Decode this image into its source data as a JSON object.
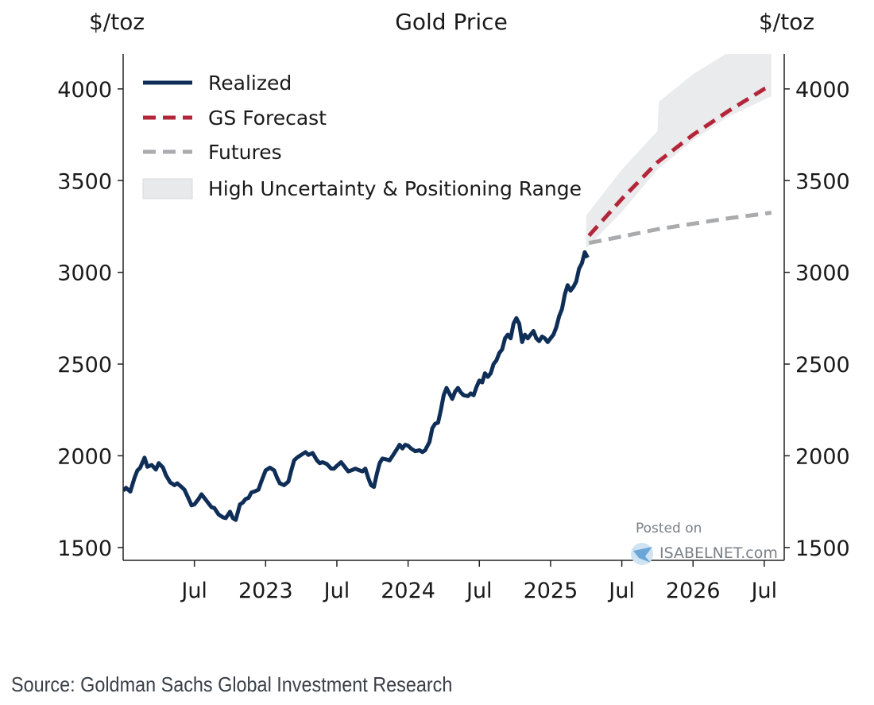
{
  "chart_data": {
    "type": "line",
    "title": "Gold Price",
    "ylabel_left": "$/toz",
    "ylabel_right": "$/toz",
    "ylim": [
      1430,
      4190
    ],
    "yticks": [
      1500,
      2000,
      2500,
      3000,
      3500,
      4000
    ],
    "xlim": [
      2022.0,
      2026.64
    ],
    "xticks": [
      {
        "value": 2022.5,
        "label": "Jul"
      },
      {
        "value": 2023.0,
        "label": "2023"
      },
      {
        "value": 2023.5,
        "label": "Jul"
      },
      {
        "value": 2024.0,
        "label": "2024"
      },
      {
        "value": 2024.5,
        "label": "Jul"
      },
      {
        "value": 2025.0,
        "label": "2025"
      },
      {
        "value": 2025.5,
        "label": "Jul"
      },
      {
        "value": 2026.0,
        "label": "2026"
      },
      {
        "value": 2026.5,
        "label": "Jul"
      }
    ],
    "legend": [
      {
        "label": "Realized",
        "style": "solid",
        "color": "#0f2e57"
      },
      {
        "label": "GS Forecast",
        "style": "dashed",
        "color": "#b3263a"
      },
      {
        "label": "Futures",
        "style": "dashed",
        "color": "#a9abae"
      },
      {
        "label": "High Uncertainty & Positioning Range",
        "style": "band",
        "color": "#e8e9eb"
      }
    ],
    "legend_position": "top-left",
    "series": [
      {
        "name": "Realized",
        "color": "#0f2e57",
        "points": [
          [
            2022.0,
            1810
          ],
          [
            2022.02,
            1825
          ],
          [
            2022.05,
            1805
          ],
          [
            2022.08,
            1880
          ],
          [
            2022.1,
            1920
          ],
          [
            2022.12,
            1935
          ],
          [
            2022.15,
            1990
          ],
          [
            2022.17,
            1940
          ],
          [
            2022.2,
            1950
          ],
          [
            2022.23,
            1925
          ],
          [
            2022.25,
            1960
          ],
          [
            2022.28,
            1935
          ],
          [
            2022.3,
            1895
          ],
          [
            2022.33,
            1855
          ],
          [
            2022.36,
            1840
          ],
          [
            2022.38,
            1850
          ],
          [
            2022.41,
            1830
          ],
          [
            2022.43,
            1815
          ],
          [
            2022.46,
            1765
          ],
          [
            2022.48,
            1730
          ],
          [
            2022.5,
            1735
          ],
          [
            2022.53,
            1765
          ],
          [
            2022.55,
            1790
          ],
          [
            2022.57,
            1770
          ],
          [
            2022.6,
            1740
          ],
          [
            2022.62,
            1720
          ],
          [
            2022.64,
            1715
          ],
          [
            2022.67,
            1680
          ],
          [
            2022.7,
            1665
          ],
          [
            2022.72,
            1660
          ],
          [
            2022.75,
            1695
          ],
          [
            2022.77,
            1660
          ],
          [
            2022.79,
            1650
          ],
          [
            2022.82,
            1735
          ],
          [
            2022.84,
            1745
          ],
          [
            2022.86,
            1765
          ],
          [
            2022.88,
            1770
          ],
          [
            2022.9,
            1800
          ],
          [
            2022.92,
            1805
          ],
          [
            2022.95,
            1815
          ],
          [
            2022.97,
            1860
          ],
          [
            2023.0,
            1920
          ],
          [
            2023.03,
            1935
          ],
          [
            2023.06,
            1920
          ],
          [
            2023.08,
            1880
          ],
          [
            2023.1,
            1850
          ],
          [
            2023.13,
            1840
          ],
          [
            2023.16,
            1860
          ],
          [
            2023.18,
            1920
          ],
          [
            2023.2,
            1975
          ],
          [
            2023.22,
            1990
          ],
          [
            2023.25,
            2005
          ],
          [
            2023.28,
            2020
          ],
          [
            2023.3,
            2005
          ],
          [
            2023.33,
            2015
          ],
          [
            2023.36,
            1975
          ],
          [
            2023.38,
            1960
          ],
          [
            2023.4,
            1965
          ],
          [
            2023.43,
            1955
          ],
          [
            2023.46,
            1930
          ],
          [
            2023.48,
            1930
          ],
          [
            2023.5,
            1945
          ],
          [
            2023.53,
            1965
          ],
          [
            2023.56,
            1935
          ],
          [
            2023.58,
            1915
          ],
          [
            2023.6,
            1920
          ],
          [
            2023.63,
            1930
          ],
          [
            2023.66,
            1920
          ],
          [
            2023.68,
            1915
          ],
          [
            2023.7,
            1930
          ],
          [
            2023.72,
            1880
          ],
          [
            2023.74,
            1840
          ],
          [
            2023.76,
            1830
          ],
          [
            2023.78,
            1900
          ],
          [
            2023.8,
            1960
          ],
          [
            2023.82,
            1985
          ],
          [
            2023.85,
            1980
          ],
          [
            2023.87,
            1975
          ],
          [
            2023.9,
            2010
          ],
          [
            2023.92,
            2035
          ],
          [
            2023.94,
            2060
          ],
          [
            2023.96,
            2040
          ],
          [
            2023.98,
            2060
          ],
          [
            2024.0,
            2055
          ],
          [
            2024.02,
            2040
          ],
          [
            2024.05,
            2025
          ],
          [
            2024.08,
            2030
          ],
          [
            2024.1,
            2020
          ],
          [
            2024.12,
            2030
          ],
          [
            2024.15,
            2075
          ],
          [
            2024.17,
            2150
          ],
          [
            2024.19,
            2175
          ],
          [
            2024.21,
            2180
          ],
          [
            2024.23,
            2250
          ],
          [
            2024.25,
            2330
          ],
          [
            2024.27,
            2370
          ],
          [
            2024.29,
            2340
          ],
          [
            2024.31,
            2310
          ],
          [
            2024.33,
            2350
          ],
          [
            2024.35,
            2370
          ],
          [
            2024.37,
            2345
          ],
          [
            2024.39,
            2330
          ],
          [
            2024.42,
            2325
          ],
          [
            2024.44,
            2340
          ],
          [
            2024.46,
            2330
          ],
          [
            2024.48,
            2375
          ],
          [
            2024.5,
            2410
          ],
          [
            2024.52,
            2400
          ],
          [
            2024.54,
            2450
          ],
          [
            2024.56,
            2430
          ],
          [
            2024.58,
            2450
          ],
          [
            2024.6,
            2500
          ],
          [
            2024.62,
            2520
          ],
          [
            2024.64,
            2560
          ],
          [
            2024.66,
            2580
          ],
          [
            2024.68,
            2640
          ],
          [
            2024.7,
            2660
          ],
          [
            2024.72,
            2640
          ],
          [
            2024.74,
            2720
          ],
          [
            2024.76,
            2750
          ],
          [
            2024.78,
            2720
          ],
          [
            2024.8,
            2620
          ],
          [
            2024.82,
            2660
          ],
          [
            2024.84,
            2640
          ],
          [
            2024.86,
            2660
          ],
          [
            2024.88,
            2680
          ],
          [
            2024.9,
            2640
          ],
          [
            2024.92,
            2625
          ],
          [
            2024.94,
            2650
          ],
          [
            2024.96,
            2640
          ],
          [
            2024.98,
            2620
          ],
          [
            2025.0,
            2640
          ],
          [
            2025.02,
            2660
          ],
          [
            2025.04,
            2700
          ],
          [
            2025.06,
            2760
          ],
          [
            2025.08,
            2800
          ],
          [
            2025.1,
            2880
          ],
          [
            2025.12,
            2930
          ],
          [
            2025.14,
            2900
          ],
          [
            2025.16,
            2920
          ],
          [
            2025.18,
            2950
          ],
          [
            2025.2,
            3020
          ],
          [
            2025.22,
            3050
          ],
          [
            2025.24,
            3110
          ],
          [
            2025.26,
            3080
          ]
        ]
      },
      {
        "name": "GS Forecast",
        "color": "#b3263a",
        "points": [
          [
            2025.27,
            3200
          ],
          [
            2025.5,
            3400
          ],
          [
            2025.75,
            3600
          ],
          [
            2026.0,
            3750
          ],
          [
            2026.25,
            3880
          ],
          [
            2026.5,
            4000
          ],
          [
            2026.55,
            4010
          ]
        ]
      },
      {
        "name": "Futures",
        "color": "#a9abae",
        "points": [
          [
            2025.27,
            3160
          ],
          [
            2025.5,
            3195
          ],
          [
            2025.75,
            3235
          ],
          [
            2026.0,
            3265
          ],
          [
            2026.25,
            3295
          ],
          [
            2026.55,
            3325
          ]
        ]
      },
      {
        "name": "High Uncertainty & Positioning Range",
        "color": "#e8e9eb",
        "upper": [
          [
            2025.25,
            3310
          ],
          [
            2025.5,
            3560
          ],
          [
            2025.75,
            3770
          ],
          [
            2025.76,
            3930
          ],
          [
            2026.0,
            4080
          ],
          [
            2026.25,
            4200
          ],
          [
            2026.55,
            4200
          ]
        ],
        "lower": [
          [
            2025.25,
            3130
          ],
          [
            2025.5,
            3330
          ],
          [
            2025.75,
            3560
          ],
          [
            2026.0,
            3720
          ],
          [
            2026.25,
            3850
          ],
          [
            2026.55,
            3960
          ]
        ]
      }
    ]
  },
  "watermark": {
    "posted_on": "Posted on",
    "site": "ISABELNET.com"
  },
  "source_note": "Source: Goldman Sachs Global Investment Research"
}
